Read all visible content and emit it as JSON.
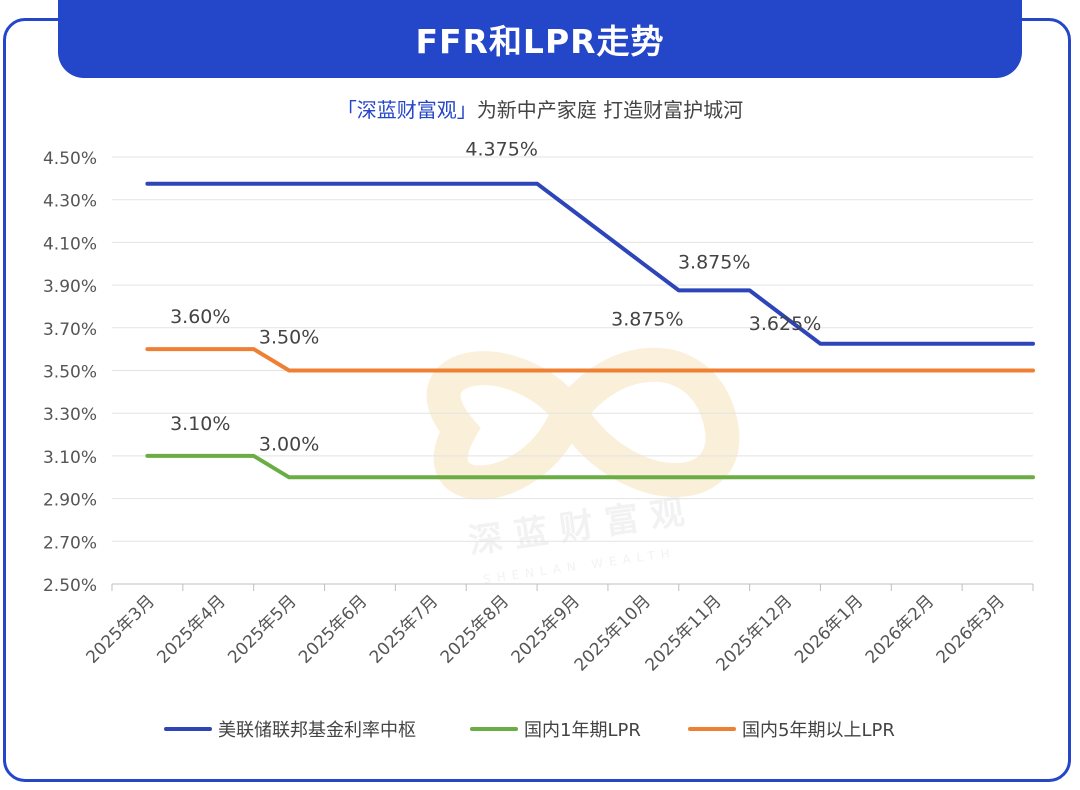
{
  "header": {
    "title": "FFR和LPR走势",
    "subtitle_brand": "「深蓝财富观」",
    "subtitle_rest": "为新中产家庭 打造财富护城河"
  },
  "watermark": {
    "text_cn": "深 蓝 财 富 观",
    "text_en": "SHENLAN WEALTH"
  },
  "colors": {
    "frame": "#2446c9",
    "ffr": "#2d45b8",
    "lpr1": "#6aad45",
    "lpr5": "#ee7f33"
  },
  "chart_data": {
    "type": "line",
    "categories": [
      "2025年3月",
      "2025年4月",
      "2025年5月",
      "2025年6月",
      "2025年7月",
      "2025年8月",
      "2025年9月",
      "2025年10月",
      "2025年11月",
      "2025年12月",
      "2026年1月",
      "2026年2月",
      "2026年3月"
    ],
    "ylim": [
      2.5,
      4.5
    ],
    "yticks": [
      "4.50%",
      "4.30%",
      "4.10%",
      "3.90%",
      "3.70%",
      "3.50%",
      "3.30%",
      "3.10%",
      "2.90%",
      "2.70%",
      "2.50%"
    ],
    "ytick_values": [
      4.5,
      4.3,
      4.1,
      3.9,
      3.7,
      3.5,
      3.3,
      3.1,
      2.9,
      2.7,
      2.5
    ],
    "grid": true,
    "legend_position": "bottom",
    "series": [
      {
        "name": "美联储联邦基金利率中枢",
        "color_key": "ffr",
        "points": [
          [
            0,
            4.375
          ],
          [
            0.5,
            4.375
          ],
          [
            1,
            4.375
          ],
          [
            2,
            4.375
          ],
          [
            3,
            4.375
          ],
          [
            4,
            4.375
          ],
          [
            5,
            4.375
          ],
          [
            5.5,
            4.375
          ],
          [
            6,
            4.25
          ],
          [
            7,
            4.0
          ],
          [
            7.5,
            3.875
          ],
          [
            8,
            3.875
          ],
          [
            8.5,
            3.875
          ],
          [
            9,
            3.75
          ],
          [
            9.5,
            3.625
          ],
          [
            10,
            3.625
          ],
          [
            11,
            3.625
          ],
          [
            12,
            3.625
          ],
          [
            12.5,
            3.625
          ]
        ]
      },
      {
        "name": "国内1年期LPR",
        "color_key": "lpr1",
        "points": [
          [
            0,
            3.1
          ],
          [
            0.5,
            3.1
          ],
          [
            1,
            3.1
          ],
          [
            1.5,
            3.1
          ],
          [
            2,
            3.0
          ],
          [
            3,
            3.0
          ],
          [
            4,
            3.0
          ],
          [
            5,
            3.0
          ],
          [
            6,
            3.0
          ],
          [
            7,
            3.0
          ],
          [
            8,
            3.0
          ],
          [
            9,
            3.0
          ],
          [
            10,
            3.0
          ],
          [
            11,
            3.0
          ],
          [
            12,
            3.0
          ],
          [
            12.5,
            3.0
          ]
        ]
      },
      {
        "name": "国内5年期以上LPR",
        "color_key": "lpr5",
        "points": [
          [
            0,
            3.6
          ],
          [
            0.5,
            3.6
          ],
          [
            1,
            3.6
          ],
          [
            1.5,
            3.6
          ],
          [
            2,
            3.5
          ],
          [
            3,
            3.5
          ],
          [
            4,
            3.5
          ],
          [
            5,
            3.5
          ],
          [
            6,
            3.5
          ],
          [
            7,
            3.5
          ],
          [
            8,
            3.5
          ],
          [
            9,
            3.5
          ],
          [
            10,
            3.5
          ],
          [
            11,
            3.5
          ],
          [
            12,
            3.5
          ],
          [
            12.5,
            3.5
          ]
        ]
      }
    ],
    "annotations": [
      {
        "text": "4.375%",
        "x": 5.0,
        "y": 4.375,
        "dx": 0,
        "dy": -28
      },
      {
        "text": "3.875%",
        "x": 7.0,
        "y": 3.875,
        "dx": 4,
        "dy": 35
      },
      {
        "text": "3.875%",
        "x": 8.0,
        "y": 3.875,
        "dx": 0,
        "dy": -22
      },
      {
        "text": "3.625%",
        "x": 9.0,
        "y": 3.625,
        "dx": 0,
        "dy": -14
      },
      {
        "text": "3.60%",
        "x": 1.0,
        "y": 3.6,
        "dx": -18,
        "dy": -26
      },
      {
        "text": "3.50%",
        "x": 2.0,
        "y": 3.5,
        "dx": 0,
        "dy": -27
      },
      {
        "text": "3.10%",
        "x": 1.0,
        "y": 3.1,
        "dx": -18,
        "dy": -26
      },
      {
        "text": "3.00%",
        "x": 2.0,
        "y": 3.0,
        "dx": 0,
        "dy": -27
      }
    ]
  }
}
